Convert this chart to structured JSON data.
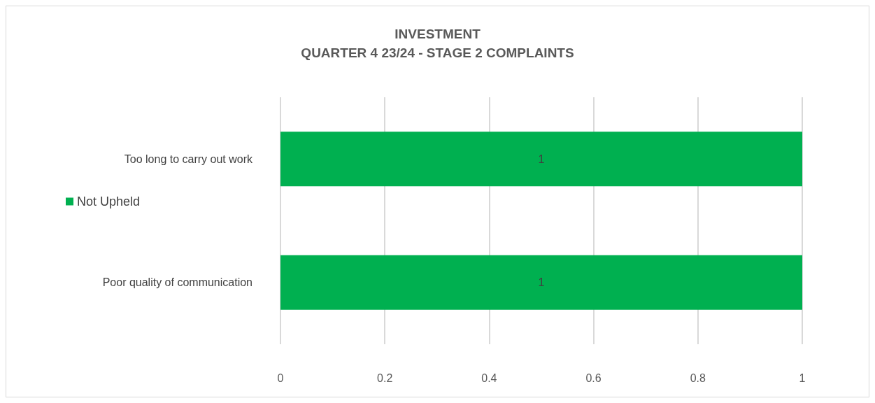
{
  "chart_data": {
    "type": "bar",
    "orientation": "horizontal",
    "title": "INVESTMENT",
    "subtitle": "QUARTER 4 23/24 - STAGE 2 COMPLAINTS",
    "categories": [
      "Too long to carry out work",
      "Poor quality of communication"
    ],
    "series": [
      {
        "name": "Not Upheld",
        "color": "#00b050",
        "values": [
          1,
          1
        ]
      }
    ],
    "xlim": [
      0,
      1
    ],
    "xticks": [
      0,
      0.2,
      0.4,
      0.6,
      0.8,
      1
    ],
    "grid": "x",
    "legend": "left",
    "data_labels": true
  }
}
